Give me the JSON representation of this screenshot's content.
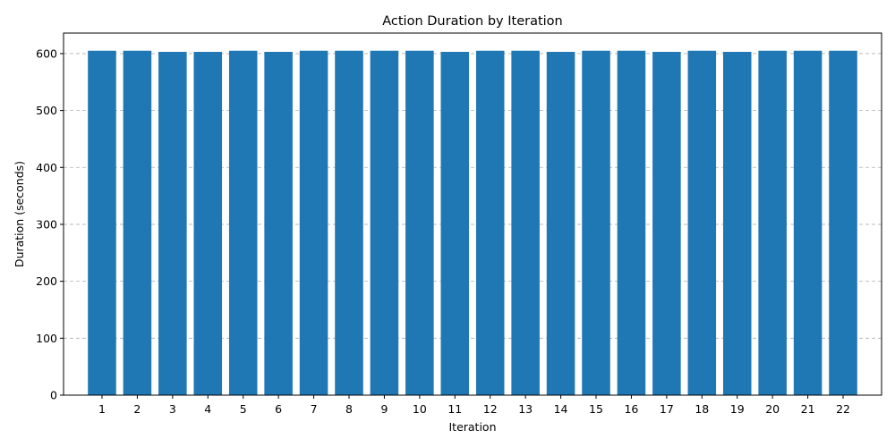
{
  "chart_data": {
    "type": "bar",
    "title": "Action Duration by Iteration",
    "xlabel": "Iteration",
    "ylabel": "Duration (seconds)",
    "categories": [
      "1",
      "2",
      "3",
      "4",
      "5",
      "6",
      "7",
      "8",
      "9",
      "10",
      "11",
      "12",
      "13",
      "14",
      "15",
      "16",
      "17",
      "18",
      "19",
      "20",
      "21",
      "22"
    ],
    "values": [
      605,
      605,
      603,
      603,
      605,
      603,
      605,
      605,
      605,
      605,
      603,
      605,
      605,
      603,
      605,
      605,
      603,
      605,
      603,
      605,
      605,
      605
    ],
    "ylim": [
      0,
      636
    ],
    "yticks": [
      0,
      100,
      200,
      300,
      400,
      500,
      600
    ],
    "grid": "y-dashed",
    "bar_color": "#1f77b4"
  }
}
